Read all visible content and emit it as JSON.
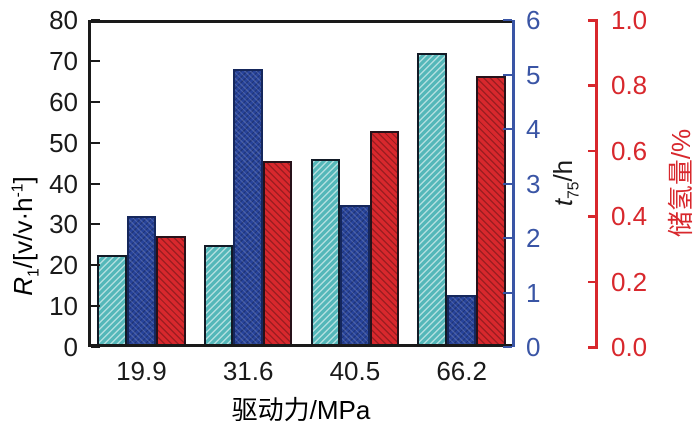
{
  "chart_data": {
    "type": "bar",
    "title": "",
    "categories": [
      "19.9",
      "31.6",
      "40.5",
      "66.2"
    ],
    "x_axis": {
      "title": "驱动力/MPa",
      "color": "#1a1a1a"
    },
    "axes": {
      "left": {
        "title_parts": {
          "var": "R",
          "sub": "1",
          "mid": "/[v/v·h",
          "sup": "-1",
          "end": "]"
        },
        "range": [
          0,
          80
        ],
        "ticks": [
          0,
          10,
          20,
          30,
          40,
          50,
          60,
          70,
          80
        ],
        "color": "#1a1a1a"
      },
      "right_inner": {
        "title_parts": {
          "var": "t",
          "sub": "75",
          "mid": "/h"
        },
        "range": [
          0,
          6
        ],
        "ticks": [
          0,
          1,
          2,
          3,
          4,
          5,
          6
        ],
        "color": "#3a55a5"
      },
      "right_outer": {
        "title": "储氢量/%",
        "range": [
          0,
          1
        ],
        "ticks": [
          "0.0",
          "0.2",
          "0.4",
          "0.6",
          "0.8",
          "1.0"
        ],
        "color": "#d8282d"
      }
    },
    "series": [
      {
        "name": "R1",
        "axis": "left",
        "hatch": "hatch-up",
        "color": "#54b7b9",
        "values": [
          22.5,
          25.0,
          46.0,
          72.0
        ]
      },
      {
        "name": "t75",
        "axis": "right_inner",
        "hatch": "hatch-cross",
        "color": "#27439a",
        "values": [
          2.4,
          5.1,
          2.6,
          0.96
        ]
      },
      {
        "name": "储氢量",
        "axis": "right_outer",
        "hatch": "hatch-down",
        "color": "#d8282d",
        "values": [
          0.34,
          0.57,
          0.66,
          0.83
        ]
      }
    ],
    "layout_hints": {
      "grid": false,
      "legend": "none",
      "bar_edge_color": "#121a26"
    }
  }
}
